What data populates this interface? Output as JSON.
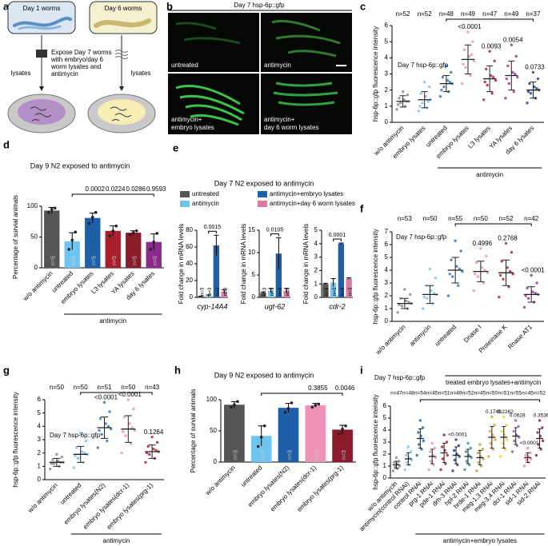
{
  "panel_labels": [
    "a",
    "b",
    "c",
    "d",
    "e",
    "f",
    "g",
    "h",
    "i"
  ],
  "schematic": {
    "worm_labels": [
      "Day 1 worms",
      "Day 6 worms"
    ],
    "center_text": [
      "Expose Day 7 worms",
      "with embryo/day 6",
      "worm lysates and",
      "antimycin"
    ],
    "arrow_labels": [
      "lysates",
      "lysates"
    ]
  },
  "images": {
    "title": "Day 7 hsp-6p::gfp",
    "captions": [
      [
        "untreated"
      ],
      [
        "antimycin"
      ],
      [
        "antimycin+",
        "embryo lysates"
      ],
      [
        "antimycin+",
        "day 6 worm lysates"
      ]
    ]
  },
  "chart_data": [
    {
      "type": "strip",
      "title": "Day 7 hsp-6p::gfp",
      "ylabel": "hsp-6p::gfp fluorescence intensity",
      "categories": [
        "w/o antimycin",
        "embryo lysates",
        "untreated",
        "embryo lysates",
        "L3 lysates",
        "YA lysates",
        "day 6 lysates"
      ],
      "n_labels": [
        "n=52",
        "n=52",
        "n=48",
        "n=49",
        "n=47",
        "n=49",
        "n=37"
      ],
      "p_labels": [
        null,
        null,
        null,
        "<0.0001",
        "0.0093",
        "0.0054",
        "0.0733"
      ],
      "group_label": "antimycin",
      "colors": [
        "#8a8a8a",
        "#7cc6ec",
        "#3a78c0",
        "#ee93b8",
        "#b0283a",
        "#9c3a8e",
        "#2b3f8e"
      ],
      "points": [
        [
          0.8,
          1.0,
          1.2,
          1.3,
          1.4,
          1.5,
          1.7,
          1.9,
          1.1,
          1.3
        ],
        [
          0.7,
          0.9,
          1.2,
          1.4,
          1.6,
          1.8,
          2.2,
          2.5,
          1.0,
          1.3
        ],
        [
          1.6,
          1.9,
          2.2,
          2.4,
          2.6,
          2.8,
          3.1,
          3.5,
          2.0,
          2.5
        ],
        [
          2.4,
          2.9,
          3.4,
          3.8,
          4.1,
          4.5,
          5.0,
          5.6,
          3.6,
          4.2
        ],
        [
          1.4,
          1.8,
          2.3,
          2.6,
          2.9,
          3.3,
          3.8,
          4.4,
          2.5,
          2.8
        ],
        [
          1.5,
          1.9,
          2.4,
          2.8,
          3.1,
          3.5,
          4.1,
          4.8,
          2.7,
          3.0
        ],
        [
          1.2,
          1.5,
          1.8,
          2.0,
          2.2,
          2.4,
          2.7,
          3.1,
          1.9,
          2.1
        ]
      ],
      "means": [
        1.3,
        1.4,
        2.4,
        3.9,
        2.7,
        2.9,
        2.0
      ],
      "sds": [
        0.35,
        0.5,
        0.5,
        0.9,
        0.8,
        0.9,
        0.5
      ],
      "ylim": [
        0,
        6
      ],
      "yticks": [
        0,
        1,
        2,
        3,
        4,
        5,
        6
      ]
    },
    {
      "type": "bar",
      "title": "Day 9 N2 exposed to antimycin",
      "ylabel": "Percentage of survial animals",
      "categories": [
        "w/o antimycin",
        "untreated",
        "embryo lysates",
        "L3 lysates",
        "YA lysates",
        "day 6 lysates"
      ],
      "values": [
        93,
        43,
        81,
        60,
        57,
        42
      ],
      "errors": [
        5,
        14,
        8,
        8,
        3,
        13
      ],
      "points": [
        [
          90,
          95,
          97
        ],
        [
          30,
          45,
          58
        ],
        [
          72,
          82,
          90
        ],
        [
          52,
          60,
          68
        ],
        [
          54,
          57,
          60
        ],
        [
          30,
          42,
          56
        ]
      ],
      "n_labels": [
        "n=5",
        "n=5",
        "n=5",
        "n=5",
        "n=5",
        "n=5"
      ],
      "p_labels": [
        null,
        null,
        "0.0002",
        "0.0224",
        "0.0286",
        "0.9593"
      ],
      "group_label": "antimycin",
      "colors": [
        "#555555",
        "#6ec6f0",
        "#1f5fa8",
        "#a8202e",
        "#8b1a2a",
        "#8b2a8c"
      ],
      "ylim": [
        0,
        100
      ],
      "yticks": [
        0,
        50,
        100
      ]
    },
    {
      "type": "ebar",
      "title": "Day 7 N2 exposed to antimycin",
      "legend": [
        {
          "name": "untreated",
          "color": "#555555"
        },
        {
          "name": "antimycin",
          "color": "#6ec6f0"
        },
        {
          "name": "antimycin+embryo lysates",
          "color": "#1f5fa8"
        },
        {
          "name": "antimycin+day 6 worm lysates",
          "color": "#d97aa8"
        }
      ],
      "ylabel": "Fold change in mRNA levels",
      "xlabel": "cyp-14A4",
      "values": [
        1,
        2,
        62,
        7
      ],
      "errors": [
        0.5,
        1,
        12,
        2
      ],
      "n_labels": [
        "n=3",
        "n=3",
        "n=3",
        "n=3"
      ],
      "p_label": "0.0015",
      "ylim": [
        0,
        80
      ],
      "yticks": [
        0,
        20,
        40,
        60,
        80
      ]
    },
    {
      "type": "ebar",
      "ylabel": "Fold change in mRNA levels",
      "xlabel": "ugt-62",
      "values": [
        1,
        1.5,
        9.8,
        1.5
      ],
      "errors": [
        0.2,
        0.5,
        3.5,
        0.5
      ],
      "n_labels": [
        "n=3",
        "n=3",
        "n=3",
        "n=3"
      ],
      "p_label": "0.0105",
      "ylim": [
        0,
        15
      ],
      "yticks": [
        0,
        5,
        10,
        15
      ]
    },
    {
      "type": "ebar",
      "ylabel": "Fold change in mRNA levels",
      "xlabel": "cdr-2",
      "values": [
        1,
        1.1,
        4,
        1.4
      ],
      "errors": [
        0.05,
        0.3,
        0.05,
        0.05
      ],
      "n_labels": [
        "n=3",
        "n=3",
        "n=3",
        "n=3"
      ],
      "p_label": "0.0001",
      "ylim": [
        0,
        5
      ],
      "yticks": [
        0,
        1,
        2,
        3,
        4,
        5
      ]
    },
    {
      "type": "strip",
      "title": "Day 7 hsp-6p::gfp",
      "ylabel": "hsp-6p::gfp fluorescence intensity",
      "categories": [
        "w/o antimycin",
        "antimycin",
        "untreated",
        "Dnase I",
        "Proteinase K",
        "Rnase AT1"
      ],
      "n_labels": [
        "n=53",
        "n=50",
        "n=55",
        "n=50",
        "n=52",
        "n=42"
      ],
      "p_labels": [
        null,
        null,
        null,
        "0.4996",
        "0.2768",
        "<0.0001"
      ],
      "group_label": "treated embryo lysates+antimycin",
      "colors": [
        "#8a8a8a",
        "#7cc6ec",
        "#3a78c0",
        "#ee93b8",
        "#b0283a",
        "#9c3a8e"
      ],
      "points": [
        [
          0.7,
          1.0,
          1.2,
          1.4,
          1.6,
          1.8,
          2.1,
          2.5,
          1.3,
          1.5
        ],
        [
          1.0,
          1.4,
          1.8,
          2.1,
          2.4,
          2.8,
          3.4,
          4.1,
          1.9,
          2.2
        ],
        [
          2.0,
          2.8,
          3.5,
          3.9,
          4.3,
          4.8,
          5.5,
          6.3,
          3.7,
          4.1
        ],
        [
          2.4,
          3.0,
          3.5,
          3.8,
          4.2,
          4.6,
          5.1,
          5.7,
          3.7,
          4.0
        ],
        [
          1.9,
          2.7,
          3.3,
          3.7,
          4.2,
          4.7,
          5.4,
          6.1,
          3.6,
          3.9
        ],
        [
          1.1,
          1.5,
          1.8,
          2.1,
          2.3,
          2.6,
          3.0,
          3.6,
          2.0,
          2.2
        ]
      ],
      "means": [
        1.4,
        2.1,
        4.0,
        3.9,
        3.8,
        2.1
      ],
      "sds": [
        0.4,
        0.7,
        1.0,
        0.8,
        1.0,
        0.6
      ],
      "ylim": [
        0,
        7
      ],
      "yticks": [
        0,
        1,
        2,
        3,
        4,
        5,
        6,
        7
      ]
    },
    {
      "type": "strip",
      "title": "Day 7 hsp-6p::gfp",
      "ylabel": "hsp-6p::gfp fluorescence intensity",
      "categories": [
        "w/o antimycin",
        "untreated",
        "embryo lysates(N2)",
        "embryo lysates(dcr-1)",
        "embryo lysates(prg-1)"
      ],
      "n_labels": [
        "n=50",
        "n=50",
        "n=51",
        "n=50",
        "n=43"
      ],
      "p_labels": [
        null,
        null,
        "<0.0001",
        "<0.0001",
        "0.1264"
      ],
      "group_label": "antimycin",
      "colors": [
        "#8a8a8a",
        "#7cc6ec",
        "#3a78c0",
        "#ee93b8",
        "#b0283a"
      ],
      "points": [
        [
          0.8,
          1.0,
          1.2,
          1.3,
          1.4,
          1.5,
          1.7,
          1.9,
          1.2,
          1.3
        ],
        [
          0.9,
          1.3,
          1.6,
          1.9,
          2.1,
          2.4,
          2.9,
          3.5,
          1.8,
          2.0
        ],
        [
          2.4,
          2.9,
          3.4,
          3.8,
          4.2,
          4.6,
          5.1,
          5.8,
          3.7,
          4.0
        ],
        [
          2.0,
          2.7,
          3.3,
          3.7,
          4.2,
          4.7,
          5.3,
          6.0,
          3.6,
          3.9
        ],
        [
          1.3,
          1.6,
          1.9,
          2.1,
          2.3,
          2.5,
          2.8,
          3.2,
          2.0,
          2.2
        ]
      ],
      "means": [
        1.3,
        1.9,
        3.9,
        3.8,
        2.1
      ],
      "sds": [
        0.3,
        0.6,
        0.8,
        1.0,
        0.5
      ],
      "ylim": [
        0,
        6
      ],
      "yticks": [
        0,
        1,
        2,
        3,
        4,
        5,
        6
      ]
    },
    {
      "type": "bar",
      "title": "Day 9 N2 exposed to antimycin",
      "ylabel": "Percentage of survial animals",
      "categories": [
        "w/o antimycin",
        "untreated",
        "embryo lysates(N2)",
        "embryo lysates(dcr-1)",
        "embryo lysates(prg-1)"
      ],
      "values": [
        92,
        42,
        87,
        91,
        52
      ],
      "errors": [
        5,
        16,
        7,
        3,
        7
      ],
      "points": [
        [
          88,
          92,
          97
        ],
        [
          25,
          40,
          58
        ],
        [
          80,
          86,
          95
        ],
        [
          88,
          91,
          93
        ],
        [
          45,
          53,
          58
        ]
      ],
      "n_labels": [
        "n=3",
        "n=3",
        "n=3",
        "n=3",
        "n=3"
      ],
      "p_labels": [
        null,
        null,
        null,
        "0.3855",
        "0.0046"
      ],
      "colors": [
        "#555555",
        "#6ec6f0",
        "#1f5fa8",
        "#ee93b8",
        "#8b1a2a"
      ],
      "ylim": [
        0,
        100
      ],
      "yticks": [
        0,
        50,
        100
      ]
    },
    {
      "type": "strip",
      "title": "Day 7 hsp-6p::gfp",
      "ylabel": "hsp-6p::gfp fluorescence intensity",
      "categories": [
        "w/o antimycin",
        "antimycin(control RNAi)",
        "control RNAi",
        "prg-1 RNAi",
        "pde-1 RNAi",
        "drh-3 RNAi",
        "hpl-2 RNAi",
        "hrde-1 RNAi",
        "meg-1,3 RNAi",
        "meg-3,4 RNAi",
        "dcr-1 RNAi",
        "sid-1 RNAi",
        "sid-2 RNAi"
      ],
      "n_labels": [
        "n=47",
        "n=48",
        "n=54",
        "n=45",
        "n=51",
        "n=49",
        "n=52",
        "n=45",
        "n=50",
        "n=51",
        "n=55",
        "n=45",
        "n=52"
      ],
      "p_labels": [
        null,
        null,
        null,
        null,
        null,
        "<0.0001",
        null,
        null,
        "0.1749",
        "0.2262",
        "0.0628",
        "<0.0001",
        "0.3536"
      ],
      "group_label": "antimycin+embryo lysates",
      "colors": [
        "#8a8a8a",
        "#7cc6ec",
        "#2b6cb0",
        "#ee93b8",
        "#a8202e",
        "#2a3f8f",
        "#2aa198",
        "#b5a642",
        "#f0a030",
        "#f2d43a",
        "#9a5cb4",
        "#f08cb0",
        "#a0203a"
      ],
      "points": [
        [
          0.6,
          0.8,
          0.9,
          1.0,
          1.2,
          1.3,
          1.4,
          1.7
        ],
        [
          0.7,
          1.1,
          1.3,
          1.5,
          1.7,
          1.9,
          2.2,
          2.6
        ],
        [
          1.9,
          2.4,
          2.8,
          3.1,
          3.5,
          3.8,
          4.2,
          4.8
        ],
        [
          0.7,
          1.1,
          1.4,
          1.7,
          1.9,
          2.2,
          2.5,
          2.9
        ],
        [
          0.7,
          1.2,
          1.6,
          1.9,
          2.3,
          2.6,
          3.0,
          3.6
        ],
        [
          0.6,
          1.1,
          1.5,
          1.8,
          2.0,
          2.3,
          2.7,
          3.2
        ],
        [
          0.7,
          1.1,
          1.4,
          1.7,
          1.9,
          2.2,
          2.5,
          2.9
        ],
        [
          0.6,
          1.0,
          1.3,
          1.6,
          1.8,
          2.1,
          2.4,
          2.8
        ],
        [
          1.8,
          2.4,
          2.9,
          3.2,
          3.6,
          3.9,
          4.4,
          5.1
        ],
        [
          1.8,
          2.4,
          2.9,
          3.2,
          3.6,
          3.9,
          4.4,
          5.1
        ],
        [
          2.2,
          2.7,
          3.1,
          3.4,
          3.6,
          3.9,
          4.3,
          4.8
        ],
        [
          1.0,
          1.3,
          1.5,
          1.6,
          1.8,
          1.9,
          2.1,
          2.5
        ],
        [
          1.9,
          2.4,
          2.8,
          3.1,
          3.5,
          3.8,
          4.2,
          4.8
        ]
      ],
      "means": [
        1.1,
        1.6,
        3.3,
        1.8,
        2.1,
        1.9,
        1.8,
        1.7,
        3.4,
        3.4,
        3.5,
        1.7,
        3.3
      ],
      "sds": [
        0.3,
        0.5,
        0.8,
        0.6,
        0.8,
        0.7,
        0.6,
        0.6,
        0.9,
        0.9,
        0.7,
        0.4,
        0.8
      ],
      "ylim": [
        0,
        6
      ],
      "yticks": [
        0,
        1,
        2,
        3,
        4,
        5,
        6
      ]
    }
  ]
}
